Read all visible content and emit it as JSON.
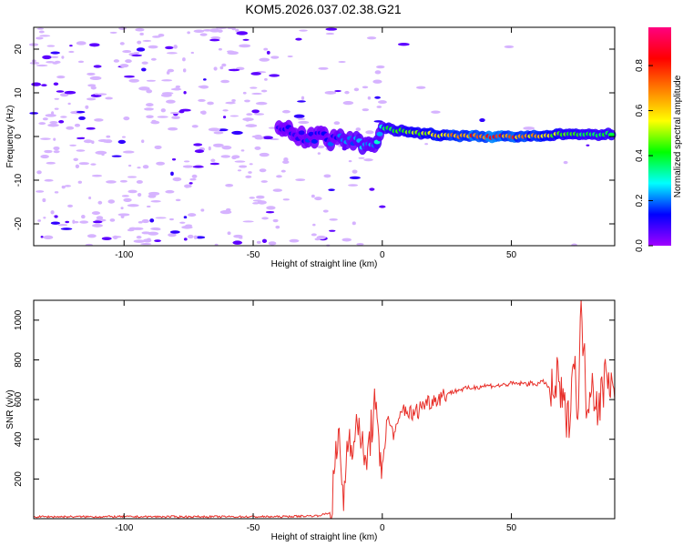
{
  "title": "KOM5.2026.037.02.38.G21",
  "colors": {
    "snr_line": "#e8302a",
    "colormap": [
      "#a000ff",
      "#0000ff",
      "#00ffff",
      "#00ff00",
      "#ffff00",
      "#ff8000",
      "#ff0000",
      "#ff0080"
    ]
  },
  "chart_data": [
    {
      "type": "heatmap",
      "xlabel": "Height of straight line (km)",
      "ylabel": "Frequency (Hz)",
      "xlim": [
        -135,
        90
      ],
      "ylim": [
        -25,
        25
      ],
      "xticks": [
        -100,
        -50,
        0,
        50
      ],
      "yticks": [
        -20,
        -10,
        0,
        10,
        20
      ],
      "grid": false,
      "colorbar": {
        "label": "Normalized spectral amplitude",
        "range": [
          0,
          0.97
        ],
        "ticks": [
          "0.0",
          "0.2",
          "0.4",
          "0.6",
          "0.8"
        ]
      },
      "ridge": [
        {
          "x": -40,
          "y": 1.5,
          "amp": 0.12
        },
        {
          "x": -30,
          "y": 0.0,
          "amp": 0.15
        },
        {
          "x": -20,
          "y": -0.5,
          "amp": 0.18
        },
        {
          "x": -10,
          "y": -1.5,
          "amp": 0.22
        },
        {
          "x": -3,
          "y": -2.5,
          "amp": 0.25
        },
        {
          "x": 0,
          "y": 2.0,
          "amp": 0.35
        },
        {
          "x": 10,
          "y": 1.0,
          "amp": 0.45
        },
        {
          "x": 20,
          "y": 0.5,
          "amp": 0.55
        },
        {
          "x": 30,
          "y": 0.0,
          "amp": 0.7
        },
        {
          "x": 40,
          "y": 0.0,
          "amp": 0.8
        },
        {
          "x": 50,
          "y": 0.0,
          "amp": 0.75
        },
        {
          "x": 60,
          "y": 0.0,
          "amp": 0.6
        },
        {
          "x": 70,
          "y": 0.5,
          "amp": 0.5
        },
        {
          "x": 80,
          "y": 0.5,
          "amp": 0.4
        },
        {
          "x": 90,
          "y": 0.5,
          "amp": 0.35
        }
      ]
    },
    {
      "type": "line",
      "xlabel": "Height of straight line (km)",
      "ylabel": "SNR (v/v)",
      "xlim": [
        -135,
        90
      ],
      "ylim": [
        0,
        1100
      ],
      "xticks": [
        -100,
        -50,
        0,
        50
      ],
      "yticks": [
        200,
        400,
        600,
        800,
        1000
      ],
      "grid": false,
      "series": [
        {
          "x": [
            -135,
            -120,
            -100,
            -80,
            -60,
            -40,
            -25,
            -20,
            -17,
            -15,
            -13,
            -11,
            -9,
            -7,
            -5,
            -3,
            -1,
            0,
            2,
            5,
            8,
            12,
            16,
            20,
            25,
            30,
            35,
            40,
            45,
            50,
            55,
            60,
            63,
            66,
            68,
            70,
            72,
            74,
            76,
            77,
            79,
            81,
            84,
            87,
            90
          ],
          "y": [
            10,
            10,
            10,
            10,
            10,
            10,
            15,
            30,
            420,
            100,
            460,
            350,
            520,
            250,
            380,
            580,
            300,
            280,
            500,
            420,
            560,
            520,
            580,
            600,
            630,
            650,
            660,
            670,
            670,
            680,
            680,
            680,
            690,
            620,
            700,
            560,
            480,
            820,
            550,
            1100,
            600,
            700,
            550,
            780,
            600
          ]
        }
      ]
    }
  ]
}
